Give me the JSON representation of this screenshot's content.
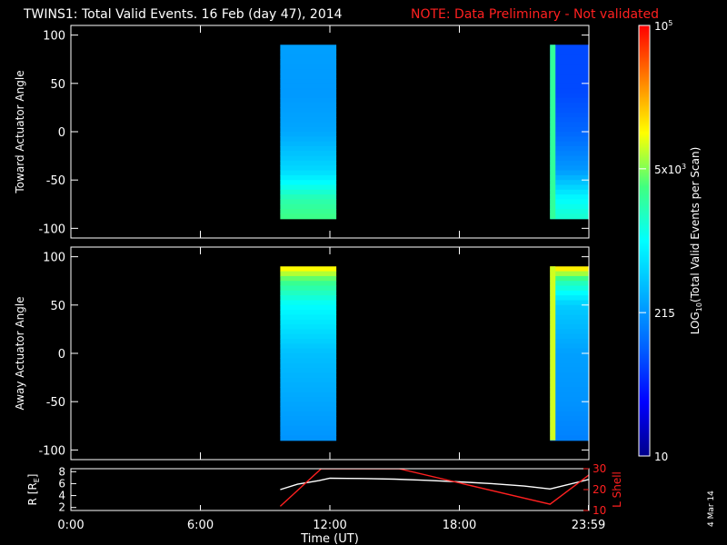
{
  "header": {
    "title": "TWINS1: Total Valid Events. 16 Feb (day  47), 2014",
    "note": "NOTE: Data Preliminary - Not validated",
    "title_color": "#ffffff",
    "note_color": "#ff2020"
  },
  "footer": {
    "stamp": "4 Mar 14"
  },
  "chart_data": [
    {
      "type": "heatmap",
      "panel": "top",
      "ylabel": "Toward Actuator Angle",
      "ylim": [
        -110,
        110
      ],
      "yticks": [
        "100",
        "50",
        "0",
        "-50",
        "-100"
      ],
      "ytick_values": [
        100,
        50,
        0,
        -50,
        -100
      ],
      "xlim_hours": [
        0,
        24
      ],
      "data_blocks": [
        {
          "t_start": 9.7,
          "t_end": 12.3,
          "angle_range": [
            -90,
            90
          ],
          "level_by_angle": [
            [
              90,
              0.35
            ],
            [
              40,
              0.34
            ],
            [
              0,
              0.36
            ],
            [
              -40,
              0.44
            ],
            [
              -70,
              0.58
            ],
            [
              -90,
              0.62
            ]
          ]
        },
        {
          "t_start": 22.2,
          "t_end": 24.0,
          "angle_range": [
            -90,
            90
          ],
          "level_by_angle": [
            [
              90,
              0.22
            ],
            [
              40,
              0.22
            ],
            [
              0,
              0.26
            ],
            [
              -40,
              0.34
            ],
            [
              -70,
              0.5
            ],
            [
              -90,
              0.55
            ]
          ],
          "edge_level": 0.6
        }
      ]
    },
    {
      "type": "heatmap",
      "panel": "middle",
      "ylabel": "Away Actuator Angle",
      "ylim": [
        -110,
        110
      ],
      "yticks": [
        "100",
        "50",
        "0",
        "-50",
        "-100"
      ],
      "ytick_values": [
        100,
        50,
        0,
        -50,
        -100
      ],
      "xlim_hours": [
        0,
        24
      ],
      "data_blocks": [
        {
          "t_start": 9.7,
          "t_end": 12.3,
          "angle_range": [
            -90,
            90
          ],
          "level_by_angle": [
            [
              90,
              0.78
            ],
            [
              75,
              0.62
            ],
            [
              50,
              0.5
            ],
            [
              0,
              0.4
            ],
            [
              -50,
              0.36
            ],
            [
              -90,
              0.33
            ]
          ]
        },
        {
          "t_start": 22.2,
          "t_end": 24.0,
          "angle_range": [
            -90,
            90
          ],
          "level_by_angle": [
            [
              90,
              0.8
            ],
            [
              75,
              0.58
            ],
            [
              50,
              0.42
            ],
            [
              0,
              0.35
            ],
            [
              -50,
              0.33
            ],
            [
              -90,
              0.3
            ]
          ],
          "edge_level": 0.72
        }
      ]
    },
    {
      "type": "line",
      "panel": "bottom",
      "ylabel_left": "R [R",
      "ylabel_left_sub": "E",
      "ylabel_left_close": "]",
      "ylabel_right": "L Shell",
      "yticks_left": [
        "8",
        "6",
        "4",
        "2"
      ],
      "ytick_values_left": [
        8,
        6,
        4,
        2
      ],
      "ylim_left": [
        1.5,
        8.5
      ],
      "yticks_right": [
        "30",
        "20",
        "10"
      ],
      "ytick_values_right": [
        30,
        20,
        10
      ],
      "ylim_right": [
        10,
        30
      ],
      "xlabel": "Time (UT)",
      "xticks": [
        "0:00",
        "6:00",
        "12:00",
        "18:00",
        "23:59"
      ],
      "xtick_values": [
        0,
        6,
        12,
        18,
        23.98
      ],
      "series": [
        {
          "axis": "left",
          "color": "#ffffff",
          "x": [
            9.7,
            10.5,
            11.5,
            12.0,
            13.5,
            15.0,
            16.5,
            18.0,
            19.5,
            21.0,
            22.2,
            23.0,
            24.0
          ],
          "y": [
            5.0,
            5.9,
            6.5,
            6.9,
            6.85,
            6.75,
            6.55,
            6.3,
            6.0,
            5.6,
            5.1,
            5.8,
            6.7
          ]
        },
        {
          "axis": "right",
          "color": "#ff2020",
          "x": [
            9.7,
            11.6,
            15.2,
            22.2,
            24.0
          ],
          "y": [
            12,
            30,
            30,
            13,
            27
          ]
        }
      ]
    }
  ],
  "colorbar": {
    "label_pre": "LOG",
    "label_sub": "10",
    "label_post": "(Total Valid Events per Scan)",
    "ticks": [
      "10",
      "215",
      "5x10",
      "10"
    ],
    "tick_sups": [
      "",
      "",
      "3",
      "5"
    ],
    "tick_levels": [
      0.0,
      0.333,
      0.667,
      1.0
    ],
    "color_stops": [
      "#00008a",
      "#0000ff",
      "#0060ff",
      "#00b0ff",
      "#00ffff",
      "#40ff80",
      "#ffff00",
      "#ff8000",
      "#ff0000"
    ]
  }
}
